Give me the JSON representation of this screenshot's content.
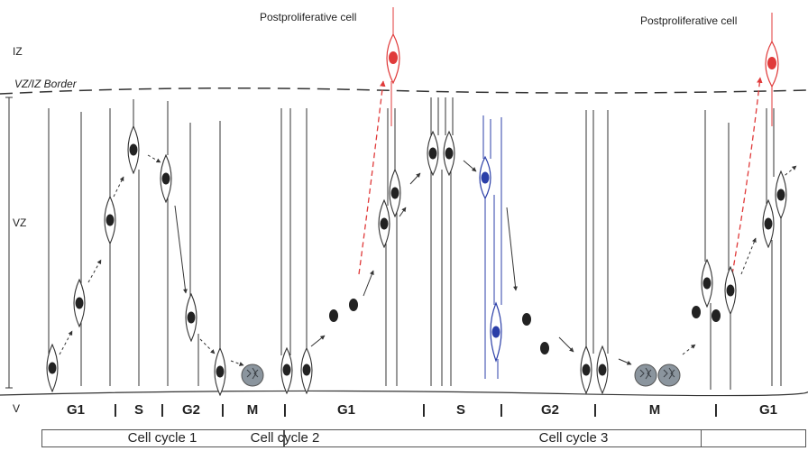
{
  "zones": {
    "iz": "IZ",
    "vz": "VZ",
    "v": "V",
    "border": "VZ/IZ Border"
  },
  "postproliferative": [
    "Postproliferative cell",
    "Postproliferative cell"
  ],
  "phases": [
    "G1",
    "S",
    "G2",
    "M",
    "G1",
    "S",
    "G2",
    "M",
    "G1"
  ],
  "separator": "|",
  "cell_cycles": [
    "Cell cycle 1",
    "Cell cycle 2",
    "Cell cycle 3"
  ],
  "colors": {
    "line": "#333333",
    "nucleus": "#222222",
    "red": "#e03a3a",
    "blue": "#2b3fa8",
    "mitotic": "#8b959e"
  }
}
